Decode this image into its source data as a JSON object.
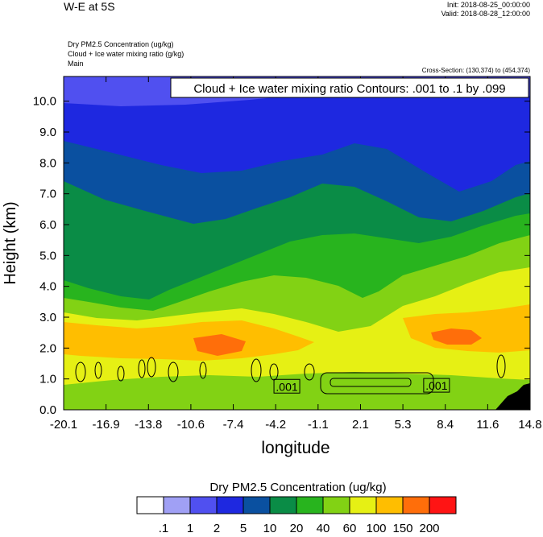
{
  "header": {
    "title": "W-E at 5S",
    "init": "Init: 2018-08-25_00:00:00",
    "valid": "Valid: 2018-08-28_12:00:00",
    "field_lines": [
      "Dry PM2.5 Concentration   (ug/kg)",
      "Cloud + Ice water mixing ratio   (g/kg)",
      "Main"
    ],
    "cross_section": "Cross-Section: (130,374) to (454,374)"
  },
  "chart_data": {
    "type": "heatmap",
    "title": "",
    "contour_info": "Cloud + Ice water mixing ratio Contours: .001 to .1 by .099",
    "xlabel": "longitude",
    "ylabel": "Height (km)",
    "x_ticks": [
      "-20.1",
      "-16.9",
      "-13.8",
      "-10.6",
      "-7.4",
      "-4.2",
      "-1.1",
      "2.1",
      "5.3",
      "8.4",
      "11.6",
      "14.8"
    ],
    "y_ticks": [
      "0.0",
      "1.0",
      "2.0",
      "3.0",
      "4.0",
      "5.0",
      "6.0",
      "7.0",
      "8.0",
      "9.0",
      "10.0"
    ],
    "xlim": [
      -20.1,
      14.8
    ],
    "ylim": [
      0,
      10.8
    ],
    "contour_labels": [
      {
        "text": ".001",
        "x": -3.4,
        "y": 0.75
      },
      {
        "text": ".001",
        "x": 7.8,
        "y": 0.78
      }
    ],
    "colorbar": {
      "title": "Dry PM2.5 Concentration  (ug/kg)",
      "levels": [
        ".1",
        "1",
        "2",
        "5",
        "10",
        "20",
        "40",
        "60",
        "100",
        "150",
        "200"
      ],
      "colors": [
        "#ffffff",
        "#a0a0f5",
        "#5050f0",
        "#1e28e0",
        "#0a50a0",
        "#0a8c46",
        "#28b41e",
        "#82d214",
        "#e6f014",
        "#ffbe00",
        "#ff6e0a",
        "#ff1414"
      ]
    }
  }
}
